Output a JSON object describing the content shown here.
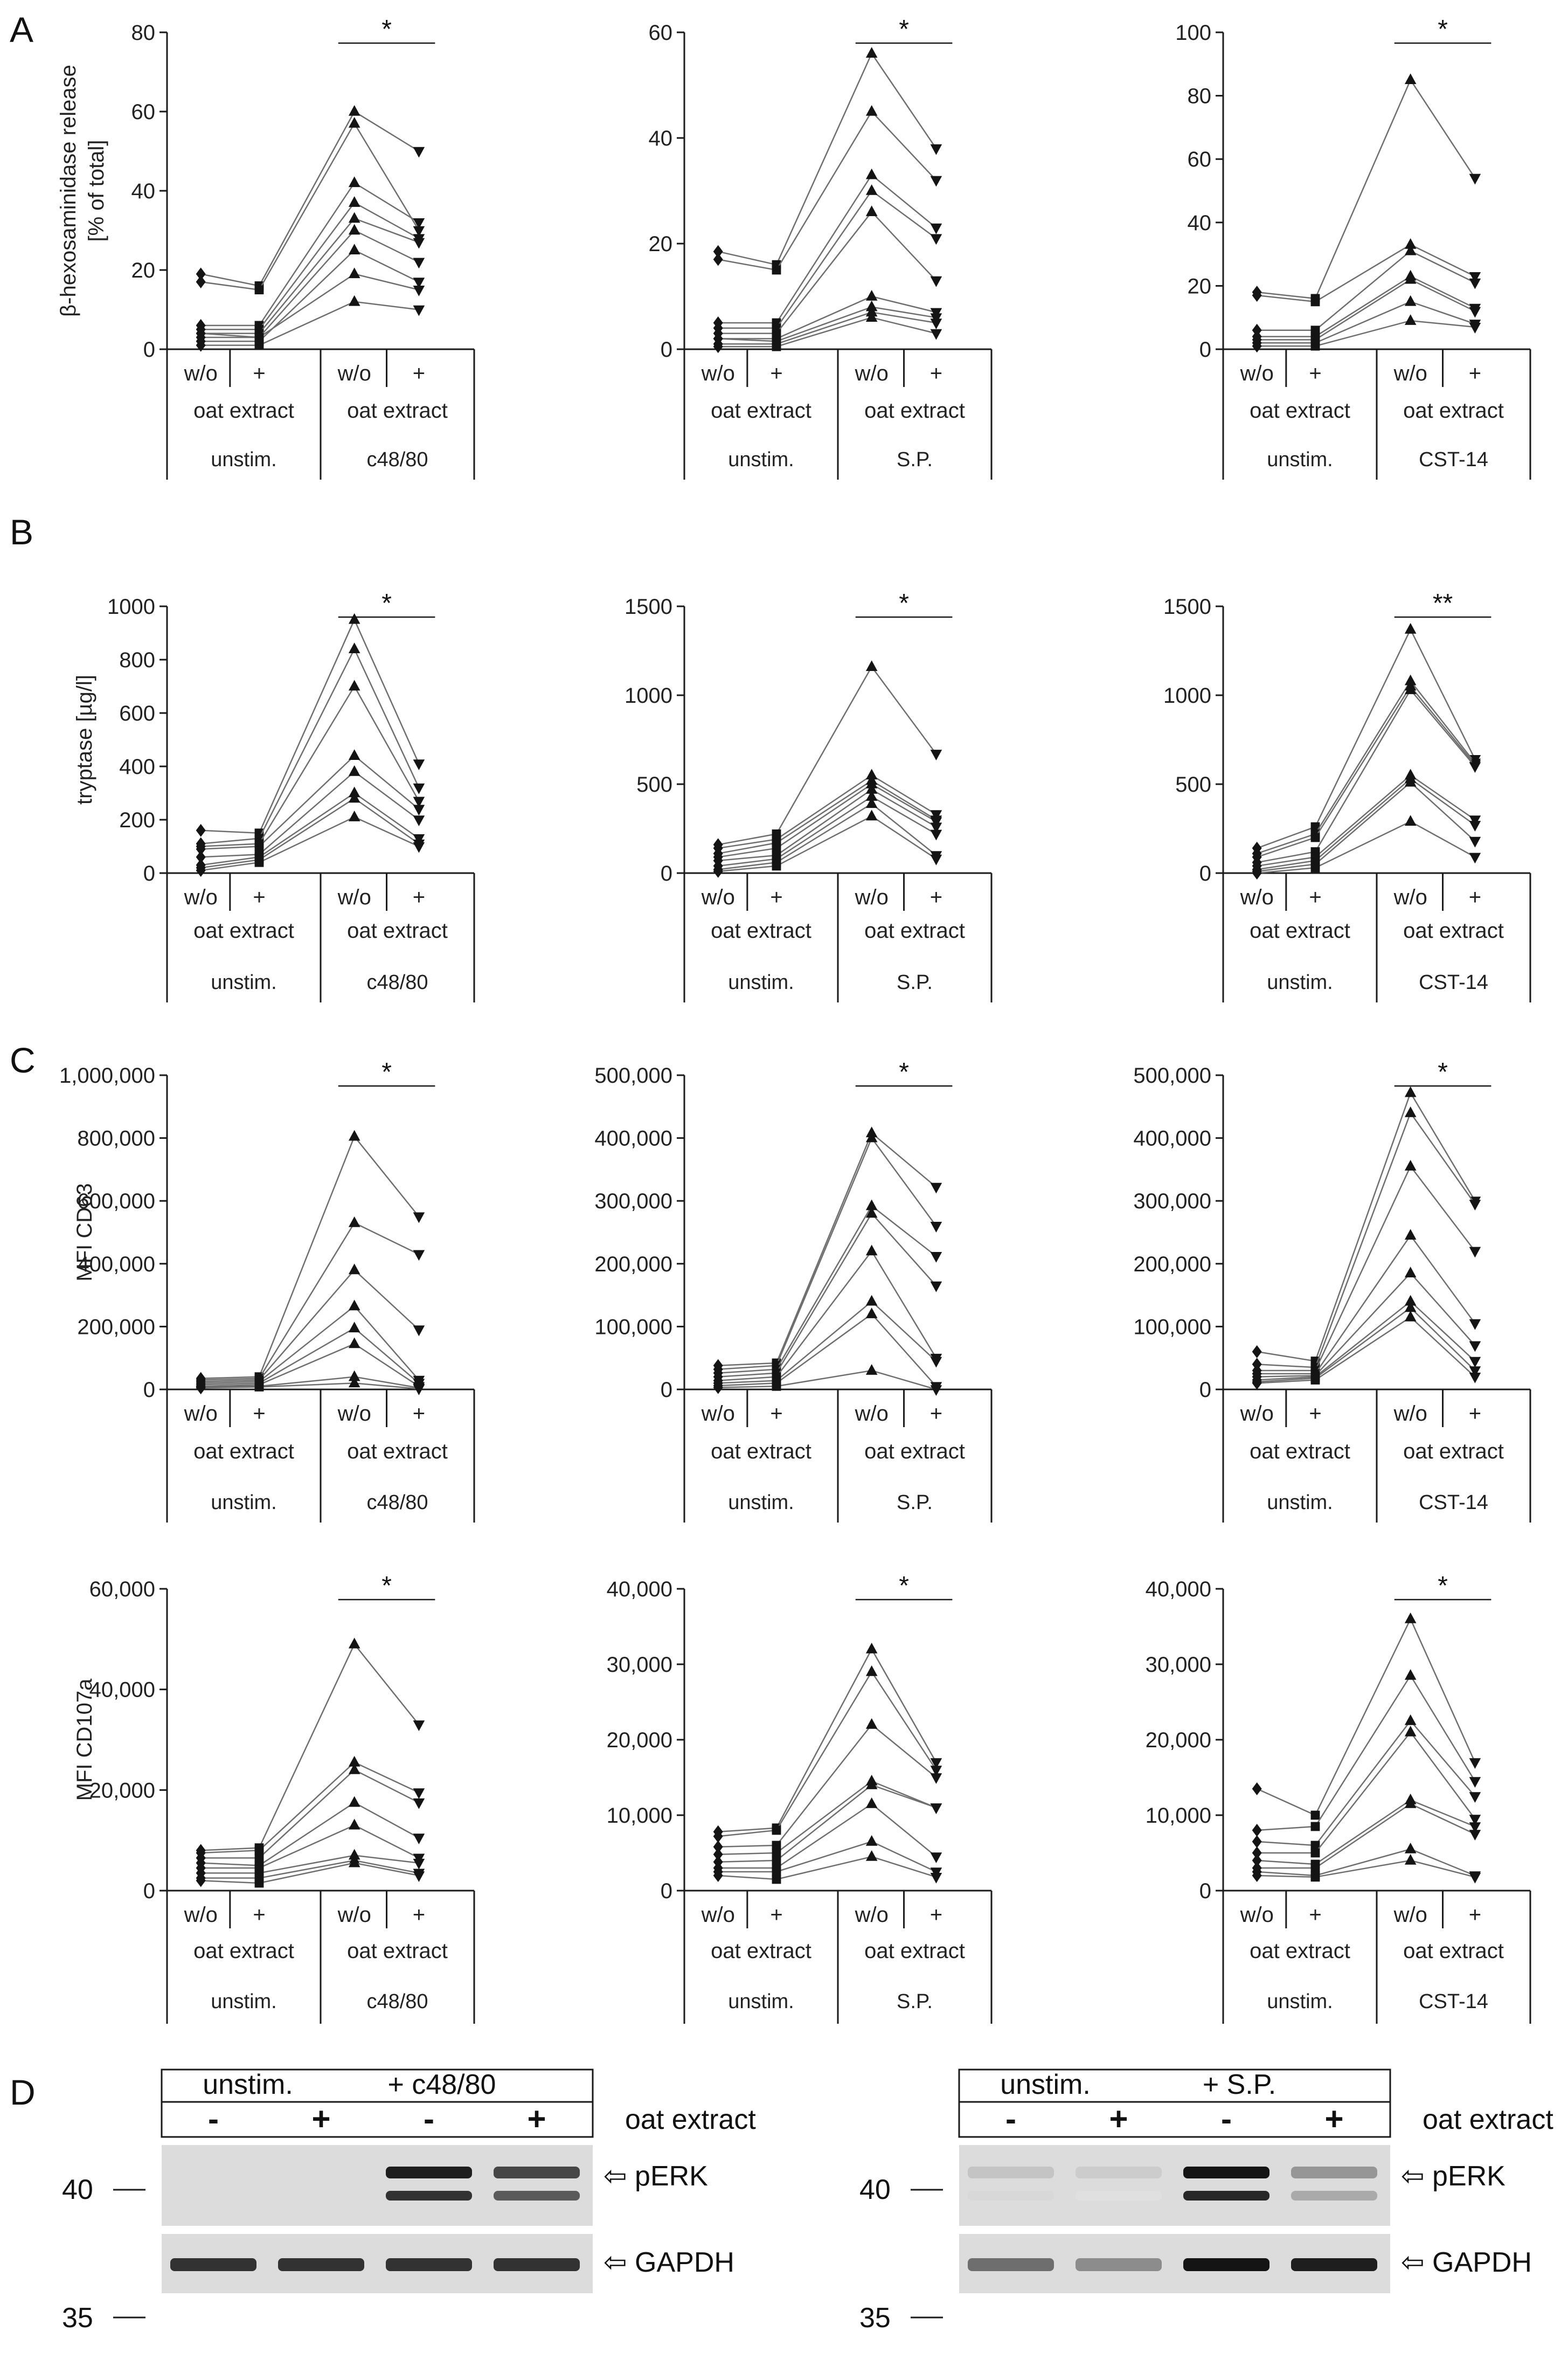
{
  "figure": {
    "panel_labels": [
      "A",
      "B",
      "C",
      "D"
    ],
    "conditions": [
      "w/o",
      "+",
      "w/o",
      "+"
    ],
    "treatment_label": "oat extract",
    "control_label": "unstim.",
    "stimuli": [
      "c48/80",
      "S.P.",
      "CST-14"
    ],
    "colors": {
      "line": "#6e6e6e",
      "marker": "#141414",
      "axis": "#1a1a1a"
    }
  },
  "chart_data": [
    {
      "id": "A1",
      "type": "line",
      "row": "A",
      "stimulus": "c48/80",
      "ylabel": [
        "β-hexosaminidase release",
        "[% of total]"
      ],
      "ylim": [
        0,
        80
      ],
      "yticks": [
        "0",
        "20",
        "40",
        "60",
        "80"
      ],
      "significance": "*",
      "series": [
        [
          19,
          16,
          60,
          50
        ],
        [
          17,
          15,
          57,
          30
        ],
        [
          6,
          6,
          42,
          32
        ],
        [
          5,
          5,
          37,
          28
        ],
        [
          4,
          4,
          33,
          27
        ],
        [
          3,
          3,
          30,
          22
        ],
        [
          2,
          2,
          25,
          17
        ],
        [
          4,
          3,
          19,
          15
        ],
        [
          1,
          1,
          12,
          10
        ]
      ]
    },
    {
      "id": "A2",
      "type": "line",
      "row": "A",
      "stimulus": "S.P.",
      "ylabel": [],
      "ylim": [
        0,
        60
      ],
      "yticks": [
        "0",
        "20",
        "40",
        "60"
      ],
      "significance": "*",
      "series": [
        [
          18.5,
          16,
          56,
          38
        ],
        [
          17,
          15,
          45,
          32
        ],
        [
          5,
          5,
          33,
          23
        ],
        [
          4,
          4,
          30,
          21
        ],
        [
          3,
          3,
          26,
          13
        ],
        [
          2,
          2,
          10,
          7
        ],
        [
          2,
          1.5,
          8,
          6
        ],
        [
          1,
          1,
          7,
          5
        ],
        [
          0.5,
          0.5,
          6,
          3
        ]
      ]
    },
    {
      "id": "A3",
      "type": "line",
      "row": "A",
      "stimulus": "CST-14",
      "ylabel": [],
      "ylim": [
        0,
        100
      ],
      "yticks": [
        "0",
        "20",
        "40",
        "60",
        "80",
        "100"
      ],
      "significance": "*",
      "series": [
        [
          18,
          16,
          85,
          54
        ],
        [
          17,
          15,
          33,
          23
        ],
        [
          6,
          6,
          31,
          21
        ],
        [
          4,
          4,
          23,
          13
        ],
        [
          3,
          3,
          22,
          12
        ],
        [
          2,
          2,
          15,
          8
        ],
        [
          1,
          1,
          9,
          7
        ]
      ]
    },
    {
      "id": "B1",
      "type": "line",
      "row": "B",
      "stimulus": "c48/80",
      "ylabel": [
        "tryptase [µg/l]"
      ],
      "ylim": [
        0,
        1000
      ],
      "yticks": [
        "0",
        "200",
        "400",
        "600",
        "800",
        "1000"
      ],
      "significance": "*",
      "series": [
        [
          160,
          150,
          950,
          410
        ],
        [
          110,
          130,
          840,
          320
        ],
        [
          100,
          110,
          700,
          270
        ],
        [
          90,
          100,
          440,
          240
        ],
        [
          60,
          70,
          380,
          200
        ],
        [
          30,
          60,
          300,
          130
        ],
        [
          20,
          50,
          280,
          110
        ],
        [
          10,
          40,
          210,
          100
        ]
      ]
    },
    {
      "id": "B2",
      "type": "line",
      "row": "B",
      "stimulus": "S.P.",
      "ylabel": [],
      "ylim": [
        0,
        1500
      ],
      "yticks": [
        "0",
        "500",
        "1000",
        "1500"
      ],
      "significance": "*",
      "series": [
        [
          160,
          220,
          1160,
          670
        ],
        [
          140,
          190,
          550,
          330
        ],
        [
          110,
          170,
          520,
          300
        ],
        [
          90,
          140,
          500,
          290
        ],
        [
          70,
          100,
          470,
          260
        ],
        [
          40,
          80,
          430,
          220
        ],
        [
          20,
          60,
          390,
          100
        ],
        [
          10,
          40,
          320,
          80
        ]
      ]
    },
    {
      "id": "B3",
      "type": "line",
      "row": "B",
      "stimulus": "CST-14",
      "ylabel": [],
      "ylim": [
        0,
        1500
      ],
      "yticks": [
        "0",
        "500",
        "1000",
        "1500"
      ],
      "significance": "**",
      "series": [
        [
          140,
          260,
          1370,
          640
        ],
        [
          110,
          220,
          1080,
          620
        ],
        [
          90,
          200,
          1050,
          610
        ],
        [
          60,
          120,
          1030,
          600
        ],
        [
          40,
          90,
          550,
          300
        ],
        [
          20,
          70,
          530,
          270
        ],
        [
          10,
          50,
          510,
          180
        ],
        [
          0,
          30,
          290,
          90
        ]
      ]
    },
    {
      "id": "C1",
      "type": "line",
      "row": "C",
      "stimulus": "c48/80",
      "ylabel": [
        "MFI CD63"
      ],
      "ylim": [
        0,
        1000000
      ],
      "yticks": [
        "0",
        "200,000",
        "400,000",
        "600,000",
        "800,000",
        "1,000,000"
      ],
      "significance": "*",
      "series": [
        [
          35000,
          40000,
          805000,
          550000
        ],
        [
          30000,
          35000,
          530000,
          430000
        ],
        [
          25000,
          30000,
          380000,
          190000
        ],
        [
          20000,
          25000,
          265000,
          30000
        ],
        [
          15000,
          20000,
          195000,
          20000
        ],
        [
          10000,
          15000,
          145000,
          10000
        ],
        [
          8000,
          10000,
          40000,
          5000
        ],
        [
          5000,
          8000,
          20000,
          2000
        ]
      ]
    },
    {
      "id": "C2",
      "type": "line",
      "row": "C",
      "stimulus": "S.P.",
      "ylabel": [],
      "ylim": [
        0,
        500000
      ],
      "yticks": [
        "0",
        "100,000",
        "200,000",
        "300,000",
        "400,000",
        "500,000"
      ],
      "significance": "*",
      "series": [
        [
          38000,
          42000,
          408000,
          322000
        ],
        [
          32000,
          38000,
          400000,
          260000
        ],
        [
          26000,
          32000,
          292000,
          212000
        ],
        [
          20000,
          26000,
          280000,
          165000
        ],
        [
          14000,
          20000,
          220000,
          50000
        ],
        [
          10000,
          14000,
          140000,
          45000
        ],
        [
          6000,
          10000,
          120000,
          5000
        ],
        [
          3000,
          5000,
          30000,
          0
        ]
      ]
    },
    {
      "id": "C3",
      "type": "line",
      "row": "C",
      "stimulus": "CST-14",
      "ylabel": [],
      "ylim": [
        0,
        500000
      ],
      "yticks": [
        "0",
        "100,000",
        "200,000",
        "300,000",
        "400,000",
        "500,000"
      ],
      "significance": "*",
      "series": [
        [
          60000,
          45000,
          472000,
          300000
        ],
        [
          40000,
          35000,
          440000,
          295000
        ],
        [
          30000,
          30000,
          355000,
          220000
        ],
        [
          25000,
          25000,
          245000,
          105000
        ],
        [
          20000,
          22000,
          185000,
          70000
        ],
        [
          15000,
          20000,
          140000,
          45000
        ],
        [
          12000,
          18000,
          130000,
          30000
        ],
        [
          10000,
          15000,
          115000,
          20000
        ]
      ]
    },
    {
      "id": "C4",
      "type": "line",
      "row": "C",
      "stimulus": "c48/80",
      "ylabel": [
        "MFI CD107a"
      ],
      "ylim": [
        0,
        60000
      ],
      "yticks": [
        "0",
        "20,000",
        "40,000",
        "60,000"
      ],
      "significance": "*",
      "series": [
        [
          8000,
          8500,
          49000,
          33000
        ],
        [
          7500,
          8000,
          25500,
          19500
        ],
        [
          6500,
          6500,
          24000,
          17500
        ],
        [
          5500,
          5000,
          17500,
          10500
        ],
        [
          4500,
          4500,
          13000,
          6500
        ],
        [
          3500,
          3500,
          7000,
          5500
        ],
        [
          2500,
          2500,
          6000,
          3500
        ],
        [
          2000,
          1500,
          5500,
          3000
        ]
      ]
    },
    {
      "id": "C5",
      "type": "line",
      "row": "C",
      "stimulus": "S.P.",
      "ylabel": [],
      "ylim": [
        0,
        40000
      ],
      "yticks": [
        "0",
        "10,000",
        "20,000",
        "30,000",
        "40,000"
      ],
      "significance": "*",
      "series": [
        [
          7800,
          8300,
          32000,
          17000
        ],
        [
          7200,
          8000,
          29000,
          16000
        ],
        [
          5800,
          6000,
          22000,
          15000
        ],
        [
          4800,
          5000,
          14500,
          11000
        ],
        [
          3800,
          4000,
          14000,
          11000
        ],
        [
          3000,
          3000,
          11500,
          4500
        ],
        [
          2500,
          2500,
          6500,
          2500
        ],
        [
          2000,
          1500,
          4500,
          1800
        ]
      ]
    },
    {
      "id": "C6",
      "type": "line",
      "row": "C",
      "stimulus": "CST-14",
      "ylabel": [],
      "ylim": [
        0,
        40000
      ],
      "yticks": [
        "0",
        "10,000",
        "20,000",
        "30,000",
        "40,000"
      ],
      "significance": "*",
      "series": [
        [
          13500,
          10000,
          36000,
          17000
        ],
        [
          8000,
          8500,
          28500,
          14500
        ],
        [
          6500,
          6000,
          22500,
          12500
        ],
        [
          5000,
          5000,
          21000,
          9500
        ],
        [
          4000,
          3500,
          12000,
          8500
        ],
        [
          3000,
          3000,
          11500,
          7500
        ],
        [
          2500,
          2000,
          5500,
          2000
        ],
        [
          2000,
          1800,
          4000,
          1800
        ]
      ]
    }
  ],
  "western_blots": [
    {
      "id": "D1",
      "header": [
        "unstim.",
        "+ c48/80"
      ],
      "signs": [
        "-",
        "+",
        "-",
        "+"
      ],
      "treatment": "oat extract",
      "markers": [
        "40",
        "35"
      ],
      "bands": [
        "pERK",
        "GAPDH"
      ],
      "perk": [
        0.0,
        0.0,
        0.95,
        0.75
      ],
      "gapdh": [
        0.85,
        0.85,
        0.85,
        0.85
      ]
    },
    {
      "id": "D2",
      "header": [
        "unstim.",
        "+ S.P."
      ],
      "signs": [
        "-",
        "+",
        "-",
        "+"
      ],
      "treatment": "oat extract",
      "markers": [
        "40",
        "35"
      ],
      "bands": [
        "pERK",
        "GAPDH"
      ],
      "perk": [
        0.12,
        0.08,
        1.0,
        0.35
      ],
      "gapdh": [
        0.55,
        0.4,
        1.0,
        0.95
      ]
    }
  ]
}
